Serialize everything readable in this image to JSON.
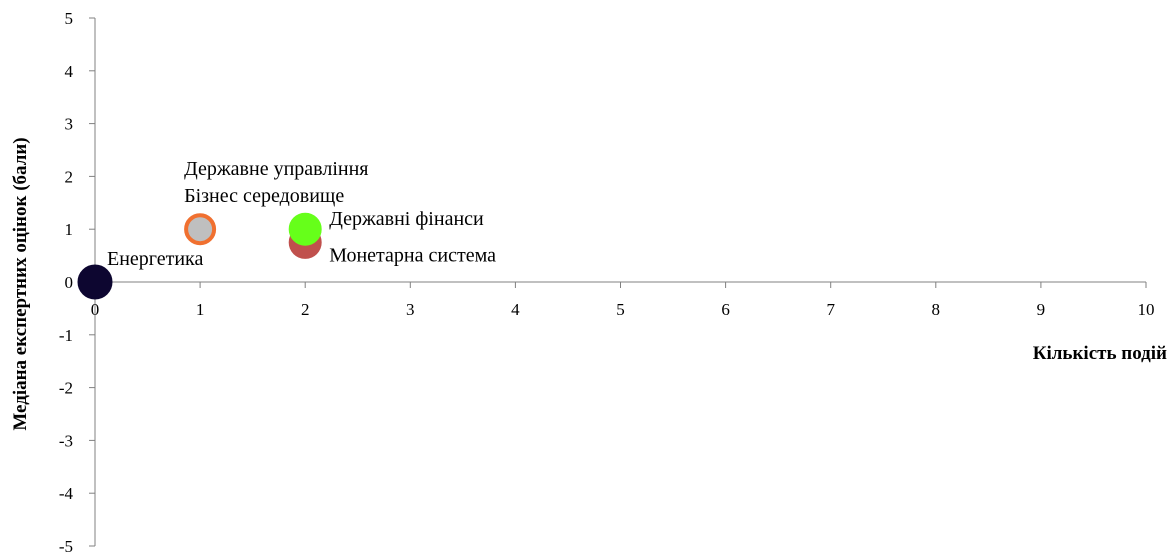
{
  "chart_data": {
    "type": "scatter",
    "title": "",
    "xlabel": "Кількість подій",
    "ylabel": "Медіана експертних оцінок (бали)",
    "xlim": [
      0,
      10
    ],
    "ylim": [
      -5,
      5
    ],
    "x_ticks": [
      "0",
      "1",
      "2",
      "3",
      "4",
      "5",
      "6",
      "7",
      "8",
      "9",
      "10"
    ],
    "y_ticks": [
      "5",
      "4",
      "3",
      "2",
      "1",
      "0",
      "-1",
      "-2",
      "-3",
      "-4",
      "-5"
    ],
    "grid": false,
    "legend": "none",
    "points": [
      {
        "label": "Енергетика",
        "x": 0,
        "y": 0,
        "fill": "#0d0630",
        "stroke": "#0d0630"
      },
      {
        "label": "Державне управління",
        "x": 1,
        "y": 1,
        "fill": "#bfbfbf",
        "stroke": "#f07030"
      },
      {
        "label": "Бізнес середовище",
        "x": 1,
        "y": 1,
        "fill": "#bfbfbf",
        "stroke": "#f07030"
      },
      {
        "label": "Монетарна система",
        "x": 2,
        "y": 0.75,
        "fill": "#c0504d",
        "stroke": "#c0504d"
      },
      {
        "label": "Державні фінанси",
        "x": 2,
        "y": 1,
        "fill": "#66ff1a",
        "stroke": "#66ff1a"
      }
    ]
  }
}
